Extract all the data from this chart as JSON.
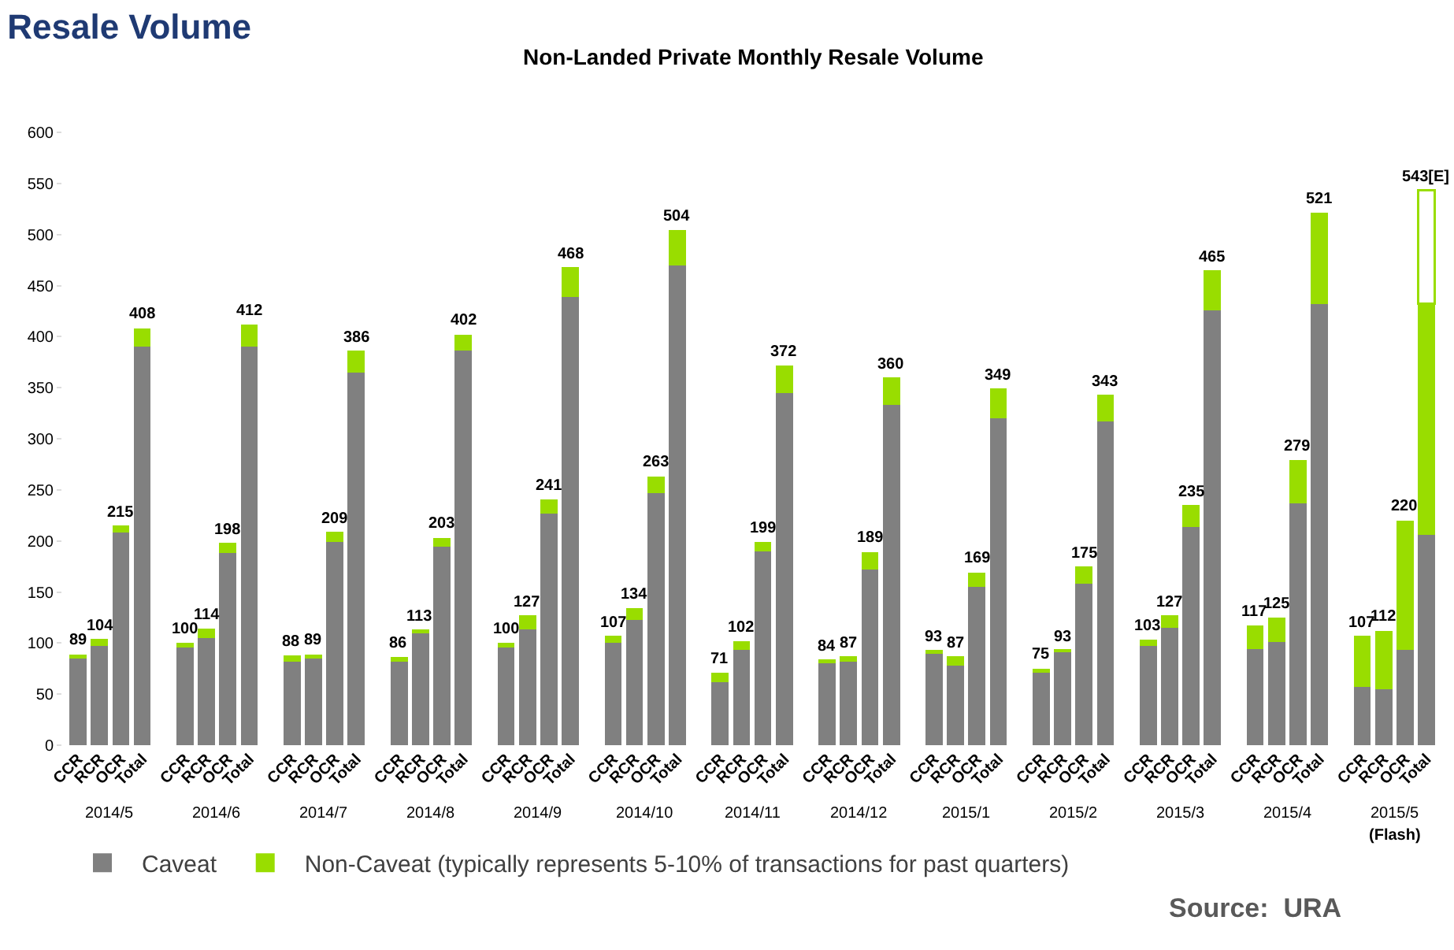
{
  "chart_data": {
    "type": "bar",
    "title": "Resale Volume",
    "subtitle": "Non-Landed Private Monthly Resale Volume",
    "categories": [
      "CCR",
      "RCR",
      "OCR",
      "Total",
      "CCR",
      "RCR",
      "OCR",
      "Total",
      "CCR",
      "RCR",
      "OCR",
      "Total",
      "CCR",
      "RCR",
      "OCR",
      "Total",
      "CCR",
      "RCR",
      "OCR",
      "Total",
      "CCR",
      "RCR",
      "OCR",
      "Total",
      "CCR",
      "RCR",
      "OCR",
      "Total",
      "CCR",
      "RCR",
      "OCR",
      "Total",
      "CCR",
      "RCR",
      "OCR",
      "Total",
      "CCR",
      "RCR",
      "OCR",
      "Total",
      "CCR",
      "RCR",
      "OCR",
      "Total",
      "CCR",
      "RCR",
      "OCR",
      "Total",
      "CCR",
      "RCR",
      "OCR",
      "Total"
    ],
    "stacked": true,
    "series": [
      {
        "name": "Caveat",
        "color": "#808080",
        "values": [
          85,
          97,
          208,
          390,
          97,
          105,
          188,
          390,
          82,
          86,
          199,
          365,
          83,
          110,
          194,
          386,
          97,
          113,
          227,
          439,
          100,
          123,
          247,
          470,
          62,
          93,
          190,
          345,
          80,
          82,
          172,
          333,
          90,
          78,
          155,
          320,
          71,
          91,
          158,
          317,
          97,
          115,
          214,
          426,
          94,
          101,
          237,
          432,
          57,
          55,
          93,
          206
        ]
      },
      {
        "name": "Non-Caveat (typically represents 5-10% of transactions for past quarters)",
        "color": "#99dd00",
        "values": [
          4,
          7,
          7,
          18,
          3,
          9,
          10,
          22,
          6,
          3,
          10,
          21,
          3,
          3,
          9,
          16,
          3,
          14,
          14,
          29,
          7,
          11,
          16,
          34,
          9,
          9,
          9,
          27,
          4,
          5,
          17,
          27,
          3,
          9,
          14,
          29,
          4,
          2,
          17,
          26,
          6,
          12,
          21,
          39,
          23,
          24,
          42,
          89,
          50,
          57,
          127,
          226
        ]
      },
      {
        "color": "#99dd00",
        "values": [
          null,
          null,
          null,
          null,
          null,
          null,
          null,
          null,
          null,
          null,
          null,
          null,
          null,
          null,
          null,
          null,
          null,
          null,
          null,
          null,
          null,
          null,
          null,
          null,
          null,
          null,
          null,
          null,
          null,
          null,
          null,
          null,
          null,
          null,
          null,
          null,
          null,
          null,
          null,
          null,
          null,
          null,
          null,
          null,
          null,
          null,
          null,
          null,
          null,
          null,
          null,
          111
        ]
      }
    ],
    "totals": [
      "89",
      "104",
      "215",
      "408",
      "100",
      "114",
      "198",
      "412",
      "88",
      "89",
      "209",
      "386",
      "86",
      "113",
      "203",
      "402",
      "100",
      "127",
      "241",
      "468",
      "107",
      "134",
      "263",
      "504",
      "71",
      "102",
      "199",
      "372",
      "84",
      "87",
      "189",
      "360",
      "93",
      "87",
      "169",
      "349",
      "75",
      "93",
      "175",
      "343",
      "103",
      "127",
      "235",
      "465",
      "117",
      "125",
      "279",
      "521",
      "107",
      "112",
      "220",
      "543[E]"
    ],
    "ylim": [
      0,
      600
    ],
    "yticks": [
      0,
      50,
      100,
      150,
      200,
      250,
      300,
      350,
      400,
      450,
      500,
      550,
      600
    ],
    "legend": "bottom",
    "annotations": [
      "2014/5",
      "2014/6",
      "2014/7",
      "2014/8",
      "2014/9",
      "2014/10",
      "2014/11",
      "2014/12",
      "2015/1",
      "2015/2",
      "2015/3",
      "2015/4",
      "2015/5",
      "(Flash)",
      "Source:  URA"
    ]
  }
}
